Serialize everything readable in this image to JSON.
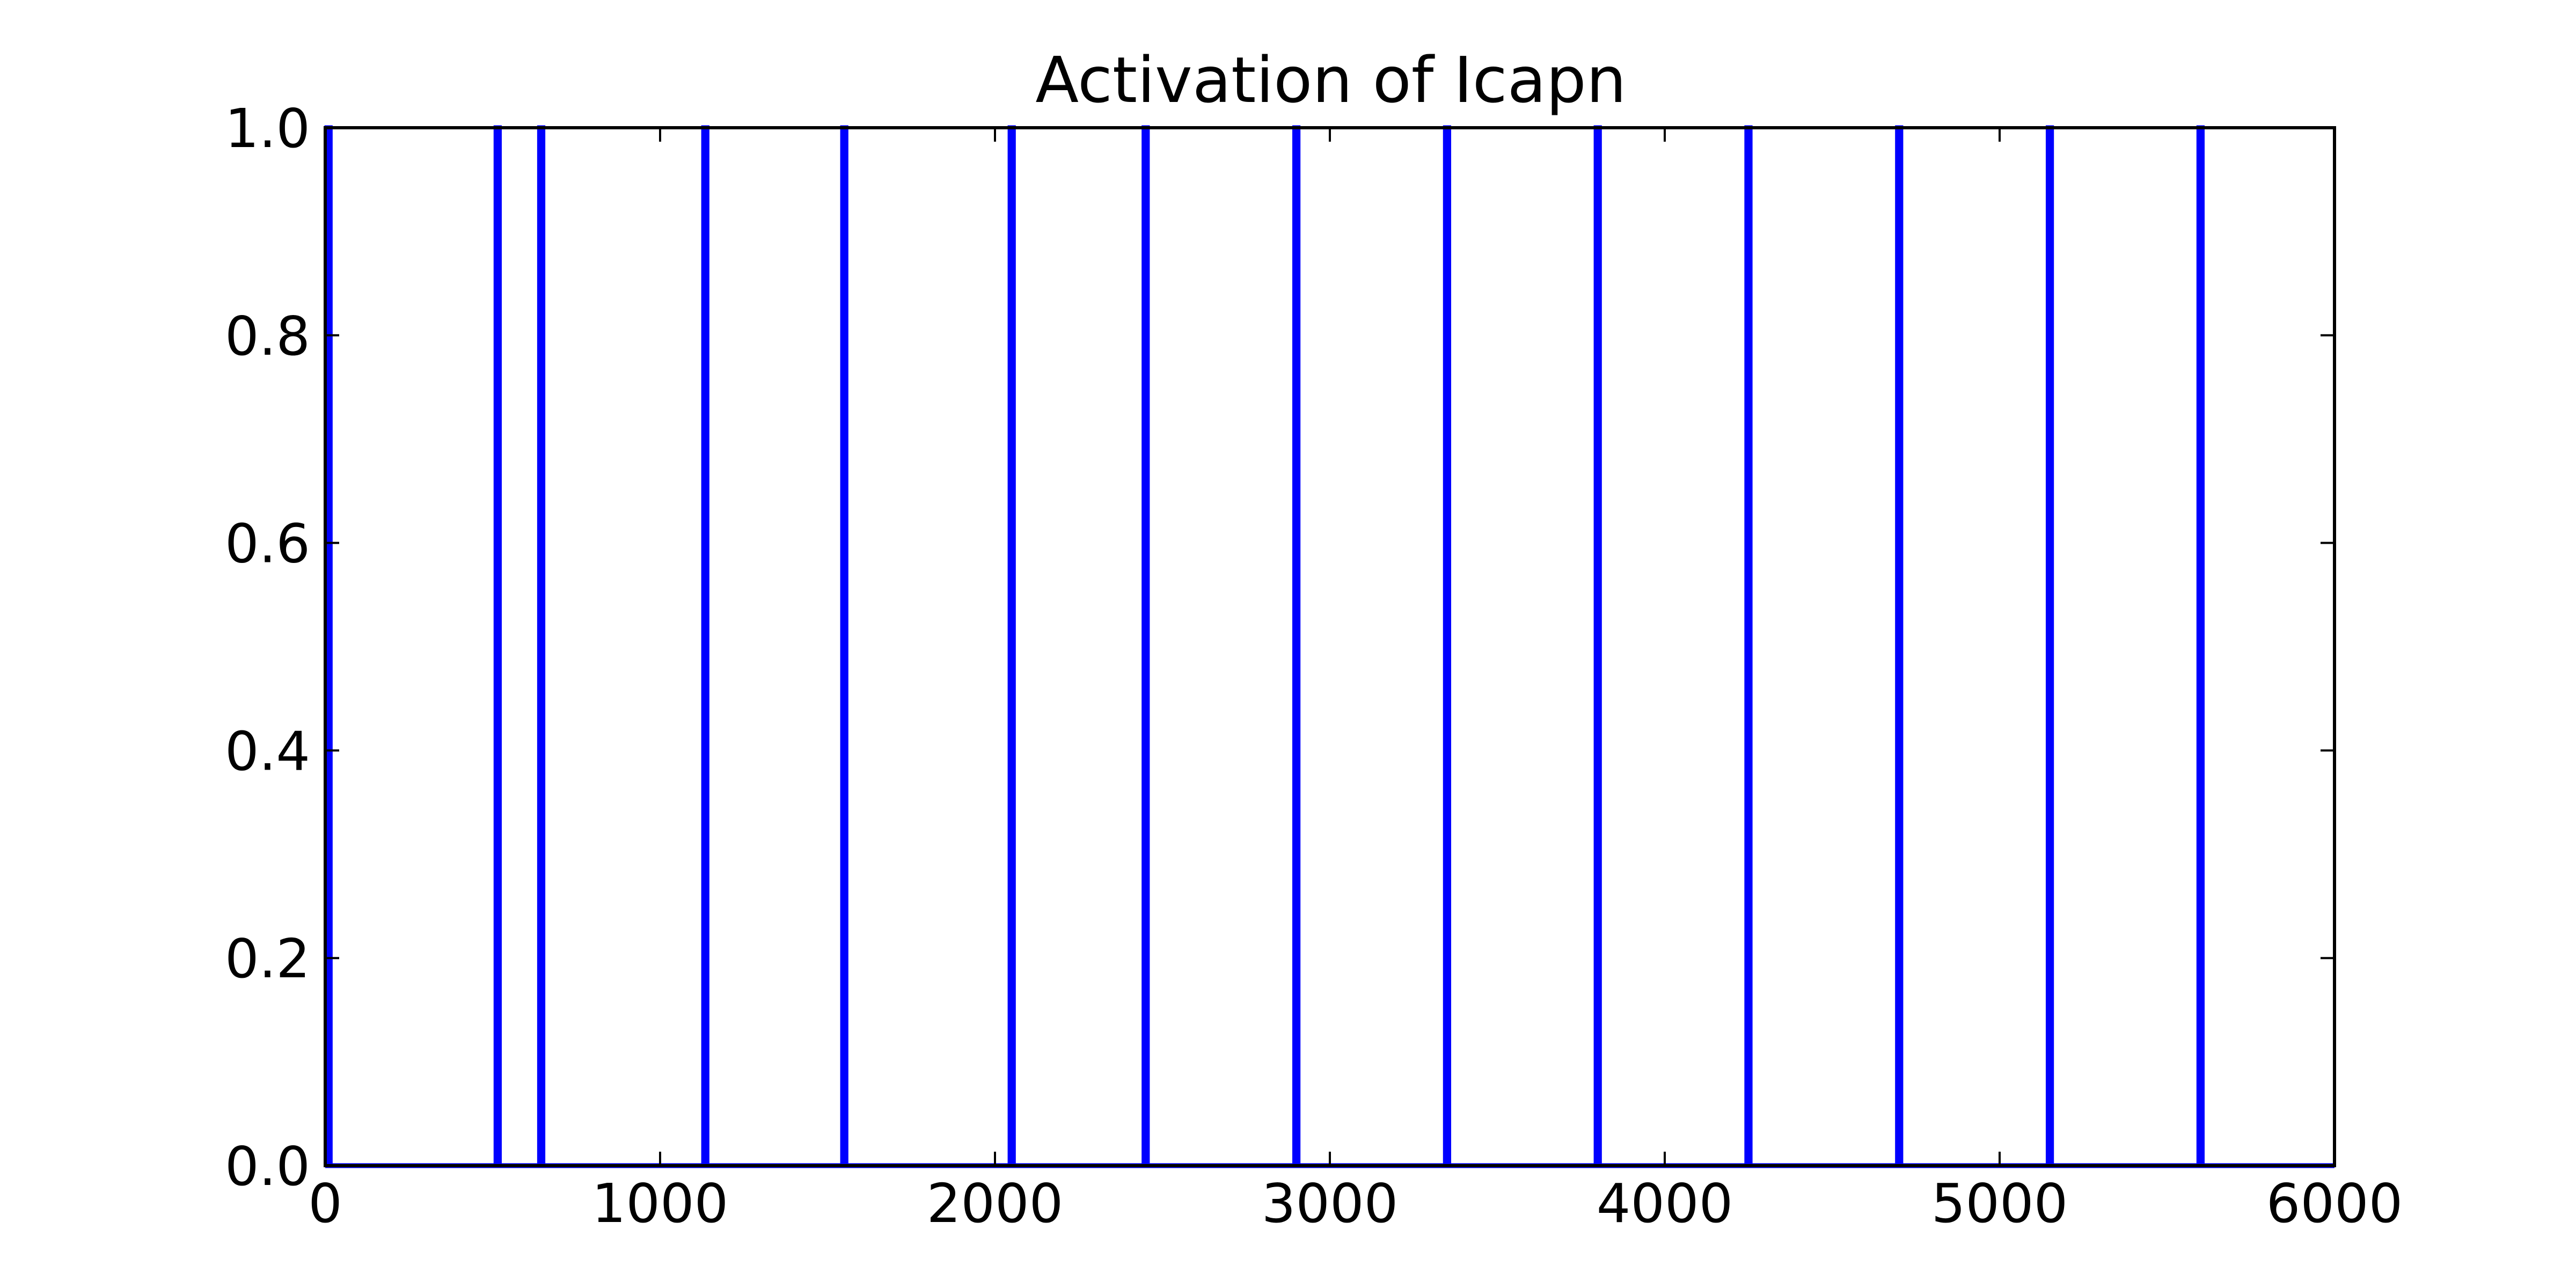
{
  "chart_data": {
    "type": "line",
    "title": "Activation of Icapn",
    "xlabel": "",
    "ylabel": "",
    "xlim": [
      0,
      6000
    ],
    "ylim": [
      0,
      1
    ],
    "x_ticks": [
      0,
      1000,
      2000,
      3000,
      4000,
      5000,
      6000
    ],
    "x_tick_labels": [
      "0",
      "1000",
      "2000",
      "3000",
      "4000",
      "5000",
      "6000"
    ],
    "y_ticks": [
      0.0,
      0.2,
      0.4,
      0.6,
      0.8,
      1.0
    ],
    "y_tick_labels": [
      "0.0",
      "0.2",
      "0.4",
      "0.6",
      "0.8",
      "1.0"
    ],
    "grid": false,
    "legend": "none",
    "series": [
      {
        "color": "#0000ff",
        "spike_times": [
          5,
          510,
          640,
          1130,
          1545,
          2045,
          2445,
          2895,
          3345,
          3795,
          4245,
          4695,
          5145,
          5595
        ],
        "spike_width": 10,
        "baseline": 0,
        "peak": 1
      }
    ]
  }
}
